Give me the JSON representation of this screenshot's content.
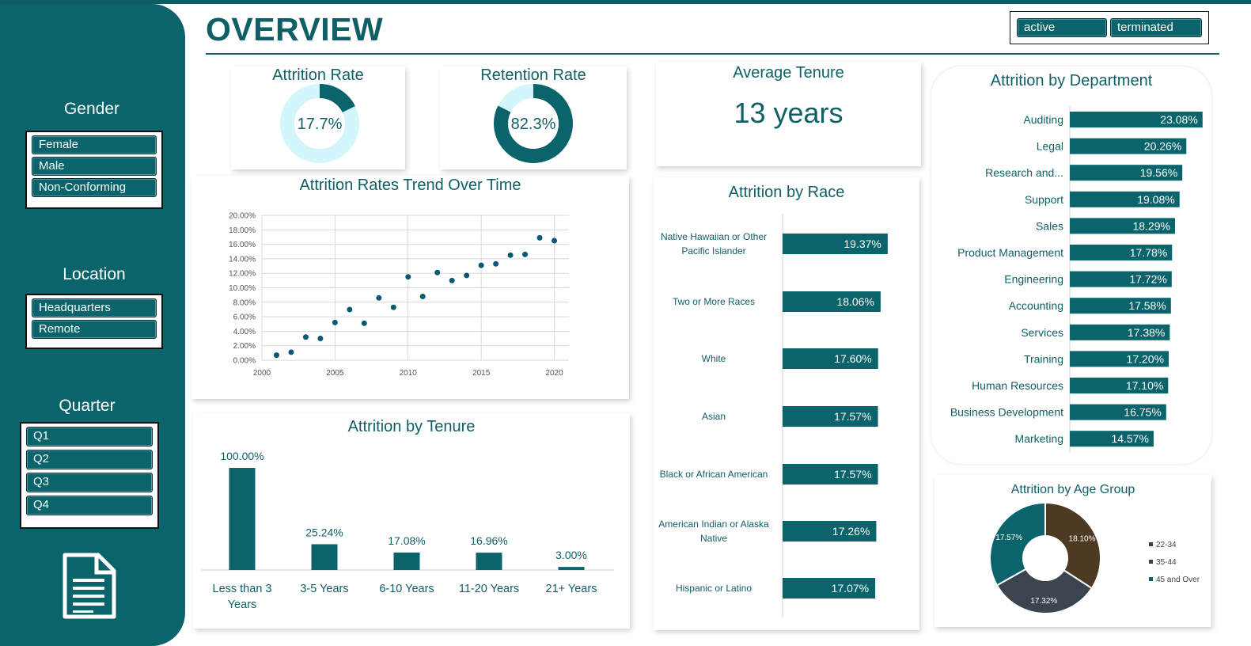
{
  "page_title": "OVERVIEW",
  "status_filter": {
    "options": [
      "active",
      "terminated"
    ]
  },
  "sidebar": {
    "gender": {
      "title": "Gender",
      "items": [
        "Female",
        "Male",
        "Non-Conforming"
      ]
    },
    "location": {
      "title": "Location",
      "items": [
        "Headquarters",
        "Remote"
      ]
    },
    "quarter": {
      "title": "Quarter",
      "items": [
        "Q1",
        "Q2",
        "Q3",
        "Q4"
      ]
    },
    "icon": "document-icon"
  },
  "colors": {
    "primary": "#0b636b",
    "light": "#d2f6fb",
    "brown": "#4d3a23",
    "slate": "#3a4550",
    "title": "#0f5f66"
  },
  "kpis": {
    "attrition": {
      "title": "Attrition Rate",
      "label": "17.7%",
      "value": 17.7
    },
    "retention": {
      "title": "Retention Rate",
      "label": "82.3%",
      "value": 82.3
    },
    "tenure": {
      "title": "Average Tenure",
      "value": "13 years"
    }
  },
  "chart_data": [
    {
      "id": "trend",
      "type": "scatter",
      "title": "Attrition Rates Trend Over Time",
      "xlim": [
        2000,
        2021
      ],
      "ylim": [
        0,
        20
      ],
      "x_ticks": [
        "2000",
        "2005",
        "2010",
        "2015",
        "2020"
      ],
      "y_ticks": [
        "0.00%",
        "2.00%",
        "4.00%",
        "6.00%",
        "8.00%",
        "10.00%",
        "12.00%",
        "14.00%",
        "16.00%",
        "18.00%",
        "20.00%"
      ],
      "grid": true,
      "x": [
        2001,
        2002,
        2003,
        2004,
        2005,
        2006,
        2007,
        2008,
        2009,
        2010,
        2011,
        2012,
        2013,
        2014,
        2015,
        2016,
        2017,
        2018,
        2019,
        2020
      ],
      "y": [
        0.7,
        1.1,
        3.2,
        3.0,
        5.2,
        7.0,
        5.1,
        8.6,
        7.3,
        11.5,
        8.8,
        12.1,
        11.0,
        11.7,
        13.1,
        13.3,
        14.5,
        14.6,
        16.9,
        16.5
      ]
    },
    {
      "id": "tenure",
      "type": "bar",
      "title": "Attrition by Tenure",
      "categories": [
        "Less than 3 Years",
        "3-5 Years",
        "6-10 Years",
        "11-20 Years",
        "21+ Years"
      ],
      "values": [
        100.0,
        25.24,
        17.08,
        16.96,
        3.0
      ],
      "labels": [
        "100.00%",
        "25.24%",
        "17.08%",
        "16.96%",
        "3.00%"
      ],
      "ylim": [
        0,
        100
      ]
    },
    {
      "id": "race",
      "type": "bar",
      "orientation": "horizontal",
      "title": "Attrition by Race",
      "categories": [
        "Native Hawaiian or Other Pacific Islander",
        "Two or More Races",
        "White",
        "Asian",
        "Black or African American",
        "American Indian or Alaska Native",
        "Hispanic or Latino"
      ],
      "values": [
        19.37,
        18.06,
        17.6,
        17.57,
        17.57,
        17.26,
        17.07
      ],
      "labels": [
        "19.37%",
        "18.06%",
        "17.60%",
        "17.57%",
        "17.57%",
        "17.26%",
        "17.07%"
      ]
    },
    {
      "id": "department",
      "type": "bar",
      "orientation": "horizontal",
      "title": "Attrition by Department",
      "categories": [
        "Auditing",
        "Legal",
        "Research and...",
        "Support",
        "Sales",
        "Product Management",
        "Engineering",
        "Accounting",
        "Services",
        "Training",
        "Human Resources",
        "Business Development",
        "Marketing"
      ],
      "values": [
        23.08,
        20.26,
        19.56,
        19.08,
        18.29,
        17.78,
        17.72,
        17.58,
        17.38,
        17.2,
        17.1,
        16.75,
        14.57
      ],
      "labels": [
        "23.08%",
        "20.26%",
        "19.56%",
        "19.08%",
        "18.29%",
        "17.78%",
        "17.72%",
        "17.58%",
        "17.38%",
        "17.20%",
        "17.10%",
        "16.75%",
        "14.57%"
      ]
    },
    {
      "id": "age",
      "type": "pie",
      "title": "Attrition by Age Group",
      "categories": [
        "22-34",
        "35-44",
        "45 and Over"
      ],
      "values": [
        18.1,
        17.32,
        17.57
      ],
      "labels": [
        "18.10%",
        "17.32%",
        "17.57%"
      ],
      "colors": [
        "#4d3a23",
        "#3a4550",
        "#0b636b"
      ],
      "legend": "right"
    }
  ]
}
